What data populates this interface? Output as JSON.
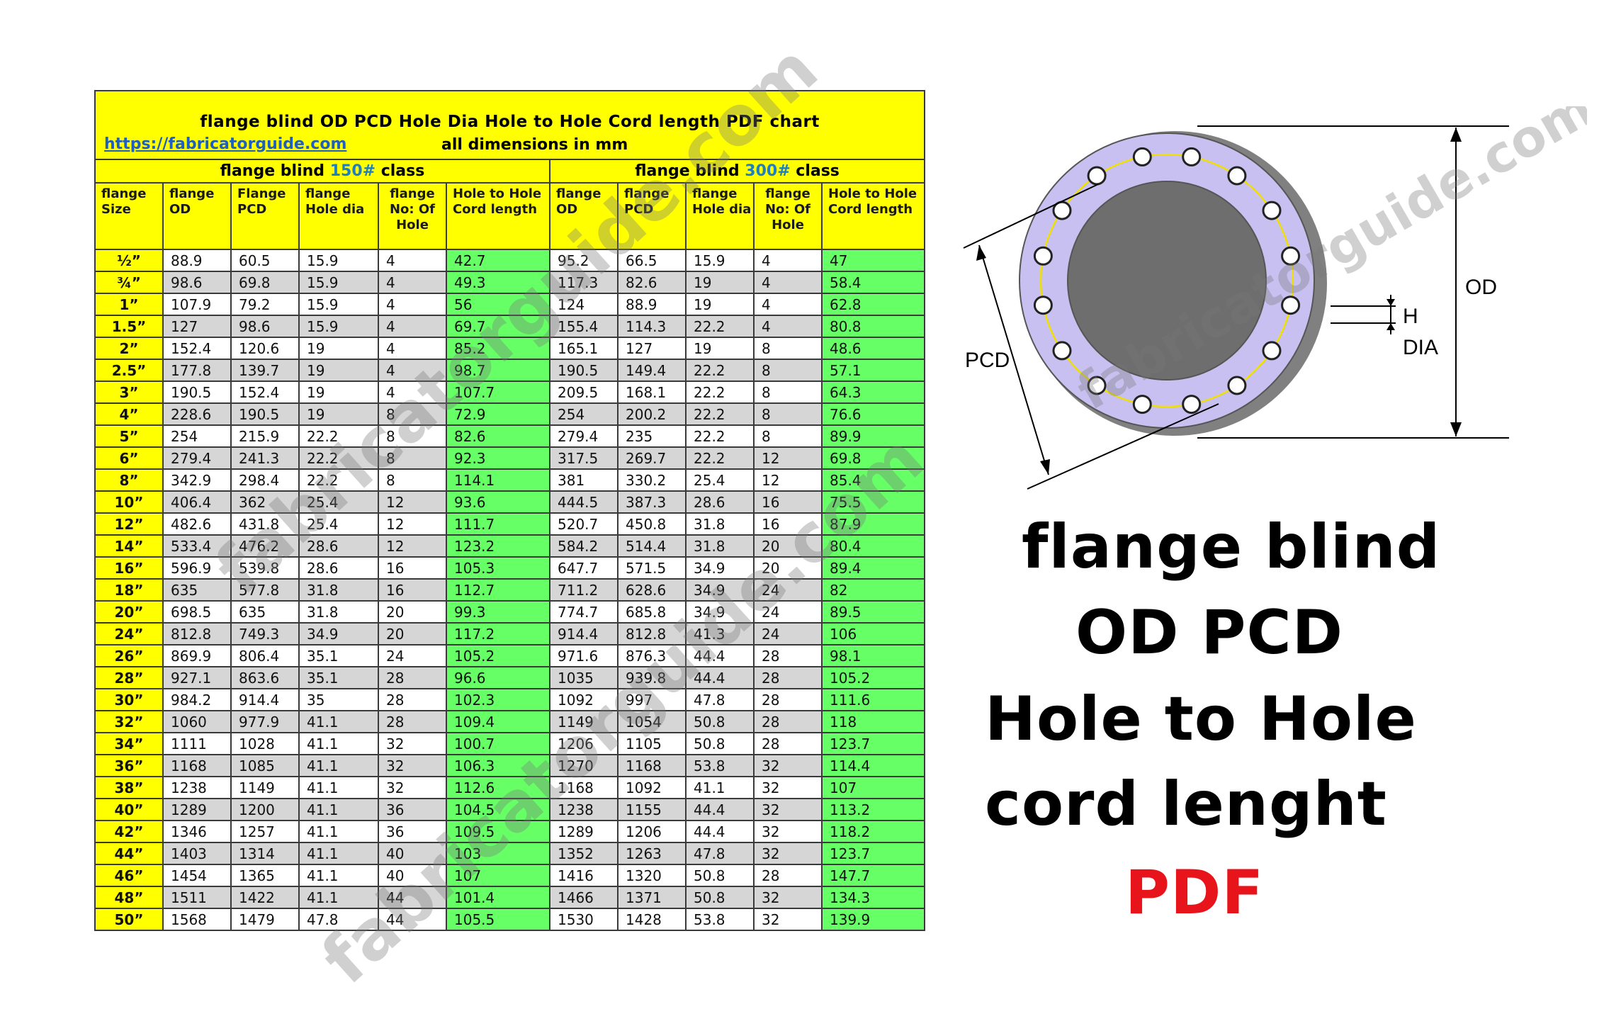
{
  "chart": {
    "title": "flange blind OD PCD Hole Dia  Hole to Hole Cord length  PDF chart",
    "link": "https://fabricatorguide.com",
    "dimensions_note": "all dimensions in mm",
    "class_150": {
      "prefix": "flange blind ",
      "num": "150#",
      "suffix": " class"
    },
    "class_300": {
      "prefix": "flange blind ",
      "num": "300#",
      "suffix": " class"
    },
    "headers": [
      "flange Size",
      "flange OD",
      "Flange PCD",
      "flange Hole dia",
      "flange No: Of Hole",
      "Hole to Hole Cord length",
      "flange OD",
      "flange PCD",
      "flange Hole dia",
      "flange No: Of Hole",
      "Hole to Hole Cord length"
    ],
    "rows": [
      [
        "½”",
        "88.9",
        "60.5",
        "15.9",
        "4",
        "42.7",
        "95.2",
        "66.5",
        "15.9",
        "4",
        "47"
      ],
      [
        "¾”",
        "98.6",
        "69.8",
        "15.9",
        "4",
        "49.3",
        "117.3",
        "82.6",
        "19",
        "4",
        "58.4"
      ],
      [
        "1”",
        "107.9",
        "79.2",
        "15.9",
        "4",
        "56",
        "124",
        "88.9",
        "19",
        "4",
        "62.8"
      ],
      [
        "1.5”",
        "127",
        "98.6",
        "15.9",
        "4",
        "69.7",
        "155.4",
        "114.3",
        "22.2",
        "4",
        "80.8"
      ],
      [
        "2”",
        "152.4",
        "120.6",
        "19",
        "4",
        "85.2",
        "165.1",
        "127",
        "19",
        "8",
        "48.6"
      ],
      [
        "2.5”",
        "177.8",
        "139.7",
        "19",
        "4",
        "98.7",
        "190.5",
        "149.4",
        "22.2",
        "8",
        "57.1"
      ],
      [
        "3”",
        "190.5",
        "152.4",
        "19",
        "4",
        "107.7",
        "209.5",
        "168.1",
        "22.2",
        "8",
        "64.3"
      ],
      [
        "4”",
        "228.6",
        "190.5",
        "19",
        "8",
        "72.9",
        "254",
        "200.2",
        "22.2",
        "8",
        "76.6"
      ],
      [
        "5”",
        "254",
        "215.9",
        "22.2",
        "8",
        "82.6",
        "279.4",
        "235",
        "22.2",
        "8",
        "89.9"
      ],
      [
        "6”",
        "279.4",
        "241.3",
        "22.2",
        "8",
        "92.3",
        "317.5",
        "269.7",
        "22.2",
        "12",
        "69.8"
      ],
      [
        "8”",
        "342.9",
        "298.4",
        "22.2",
        "8",
        "114.1",
        "381",
        "330.2",
        "25.4",
        "12",
        "85.4"
      ],
      [
        "10”",
        "406.4",
        "362",
        "25.4",
        "12",
        "93.6",
        "444.5",
        "387.3",
        "28.6",
        "16",
        "75.5"
      ],
      [
        "12”",
        "482.6",
        "431.8",
        "25.4",
        "12",
        "111.7",
        "520.7",
        "450.8",
        "31.8",
        "16",
        "87.9"
      ],
      [
        "14”",
        "533.4",
        "476.2",
        "28.6",
        "12",
        "123.2",
        "584.2",
        "514.4",
        "31.8",
        "20",
        "80.4"
      ],
      [
        "16”",
        "596.9",
        "539.8",
        "28.6",
        "16",
        "105.3",
        "647.7",
        "571.5",
        "34.9",
        "20",
        "89.4"
      ],
      [
        "18”",
        "635",
        "577.8",
        "31.8",
        "16",
        "112.7",
        "711.2",
        "628.6",
        "34.9",
        "24",
        "82"
      ],
      [
        "20”",
        "698.5",
        "635",
        "31.8",
        "20",
        "99.3",
        "774.7",
        "685.8",
        "34.9",
        "24",
        "89.5"
      ],
      [
        "24”",
        "812.8",
        "749.3",
        "34.9",
        "20",
        "117.2",
        "914.4",
        "812.8",
        "41.3",
        "24",
        "106"
      ],
      [
        "26”",
        "869.9",
        "806.4",
        "35.1",
        "24",
        "105.2",
        "971.6",
        "876.3",
        "44.4",
        "28",
        "98.1"
      ],
      [
        "28”",
        "927.1",
        "863.6",
        "35.1",
        "28",
        "96.6",
        "1035",
        "939.8",
        "44.4",
        "28",
        "105.2"
      ],
      [
        "30”",
        "984.2",
        "914.4",
        "35",
        "28",
        "102.3",
        "1092",
        "997",
        "47.8",
        "28",
        "111.6"
      ],
      [
        "32”",
        "1060",
        "977.9",
        "41.1",
        "28",
        "109.4",
        "1149",
        "1054",
        "50.8",
        "28",
        "118"
      ],
      [
        "34”",
        "1111",
        "1028",
        "41.1",
        "32",
        "100.7",
        "1206",
        "1105",
        "50.8",
        "28",
        "123.7"
      ],
      [
        "36”",
        "1168",
        "1085",
        "41.1",
        "32",
        "106.3",
        "1270",
        "1168",
        "53.8",
        "32",
        "114.4"
      ],
      [
        "38”",
        "1238",
        "1149",
        "41.1",
        "32",
        "112.6",
        "1168",
        "1092",
        "41.1",
        "32",
        "107"
      ],
      [
        "40”",
        "1289",
        "1200",
        "41.1",
        "36",
        "104.5",
        "1238",
        "1155",
        "44.4",
        "32",
        "113.2"
      ],
      [
        "42”",
        "1346",
        "1257",
        "41.1",
        "36",
        "109.5",
        "1289",
        "1206",
        "44.4",
        "32",
        "118.2"
      ],
      [
        "44”",
        "1403",
        "1314",
        "41.1",
        "40",
        "103",
        "1352",
        "1263",
        "47.8",
        "32",
        "123.7"
      ],
      [
        "46”",
        "1454",
        "1365",
        "41.1",
        "40",
        "107",
        "1416",
        "1320",
        "50.8",
        "28",
        "147.7"
      ],
      [
        "48”",
        "1511",
        "1422",
        "41.1",
        "44",
        "101.4",
        "1466",
        "1371",
        "50.8",
        "32",
        "134.3"
      ],
      [
        "50”",
        "1568",
        "1479",
        "47.8",
        "44",
        "105.5",
        "1530",
        "1428",
        "53.8",
        "32",
        "139.9"
      ]
    ]
  },
  "diagram": {
    "label_od": "OD",
    "label_pcd": "PCD",
    "label_h": "H",
    "label_dia": "DIA",
    "hole_count": 16
  },
  "watermark": "fabricatorguide.com",
  "big_title": {
    "line1": "flange blind",
    "line2": "OD PCD",
    "line3": "Hole to Hole",
    "line4": "cord lenght",
    "line5": "PDF"
  },
  "colors": {
    "header_yellow": "#ffff00",
    "cord_green": "#66ff66",
    "row_gray": "#d6d6d6",
    "flange_lavender": "#c8c0f0",
    "pdf_red": "#e8141c",
    "class_blue": "#1f7fbf"
  }
}
